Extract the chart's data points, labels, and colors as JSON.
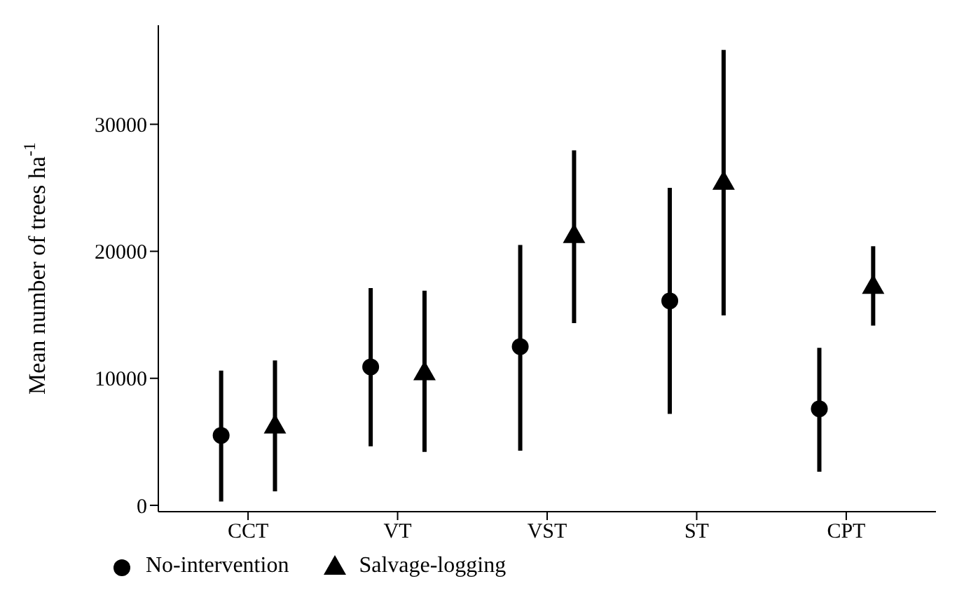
{
  "chart_data": {
    "type": "scatter",
    "ylabel": "Mean number of trees ha$^{-1}$",
    "categories": [
      "CCT",
      "VT",
      "VST",
      "ST",
      "CPT"
    ],
    "series": [
      {
        "name": "No-intervention",
        "color": "#000000",
        "marker": "circle",
        "values": [
          5500,
          10900,
          12500,
          16100,
          7600
        ],
        "errors": [
          [
            300,
            10600
          ],
          [
            4650,
            17100
          ],
          [
            4300,
            20500
          ],
          [
            7200,
            25000
          ],
          [
            2650,
            12400
          ]
        ]
      },
      {
        "name": "Salvage-logging",
        "color": "#000000",
        "marker": "triangle",
        "values": [
          6200,
          10400,
          21200,
          25400,
          17200
        ],
        "errors": [
          [
            1100,
            11400
          ],
          [
            4200,
            16900
          ],
          [
            14350,
            27950
          ],
          [
            14950,
            35850
          ],
          [
            14150,
            20400
          ]
        ]
      }
    ],
    "ylim": [
      -500,
      37800
    ],
    "yticks": [
      0,
      10000,
      20000,
      30000
    ],
    "legend": "bottom left"
  }
}
